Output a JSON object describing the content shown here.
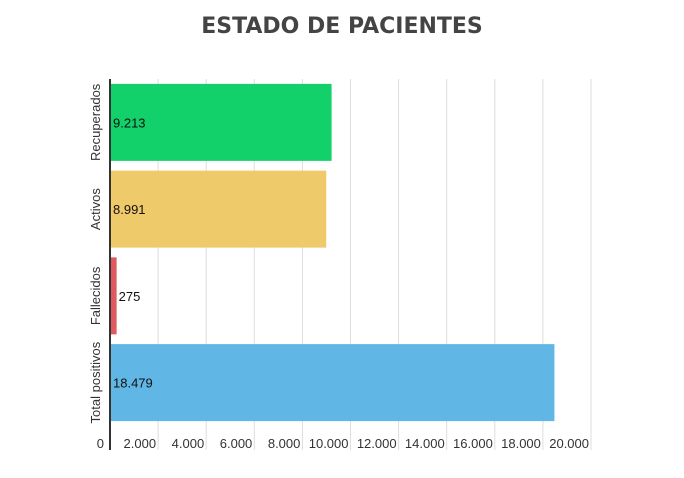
{
  "chart_data": {
    "type": "bar",
    "orientation": "horizontal",
    "title": "ESTADO DE PACIENTES",
    "xlabel": "",
    "ylabel": "",
    "categories": [
      "Recuperados",
      "Activos",
      "Fallecidos",
      "Total positivos"
    ],
    "values": [
      9213,
      8991,
      275,
      18479
    ],
    "value_labels": [
      "9.213",
      "8.991",
      "275",
      "18.479"
    ],
    "colors": [
      "#12d16a",
      "#efca6b",
      "#de5a5f",
      "#60b6e5"
    ],
    "xlim": [
      0,
      20000
    ],
    "x_ticks": [
      0,
      2000,
      4000,
      6000,
      8000,
      10000,
      12000,
      14000,
      16000,
      18000,
      20000
    ],
    "x_tick_labels": [
      "0",
      "2.000",
      "4.000",
      "6.000",
      "8.000",
      "10.000",
      "12.000",
      "14.000",
      "16.000",
      "18.000",
      "20.000"
    ],
    "grid": true,
    "legend": "none"
  }
}
